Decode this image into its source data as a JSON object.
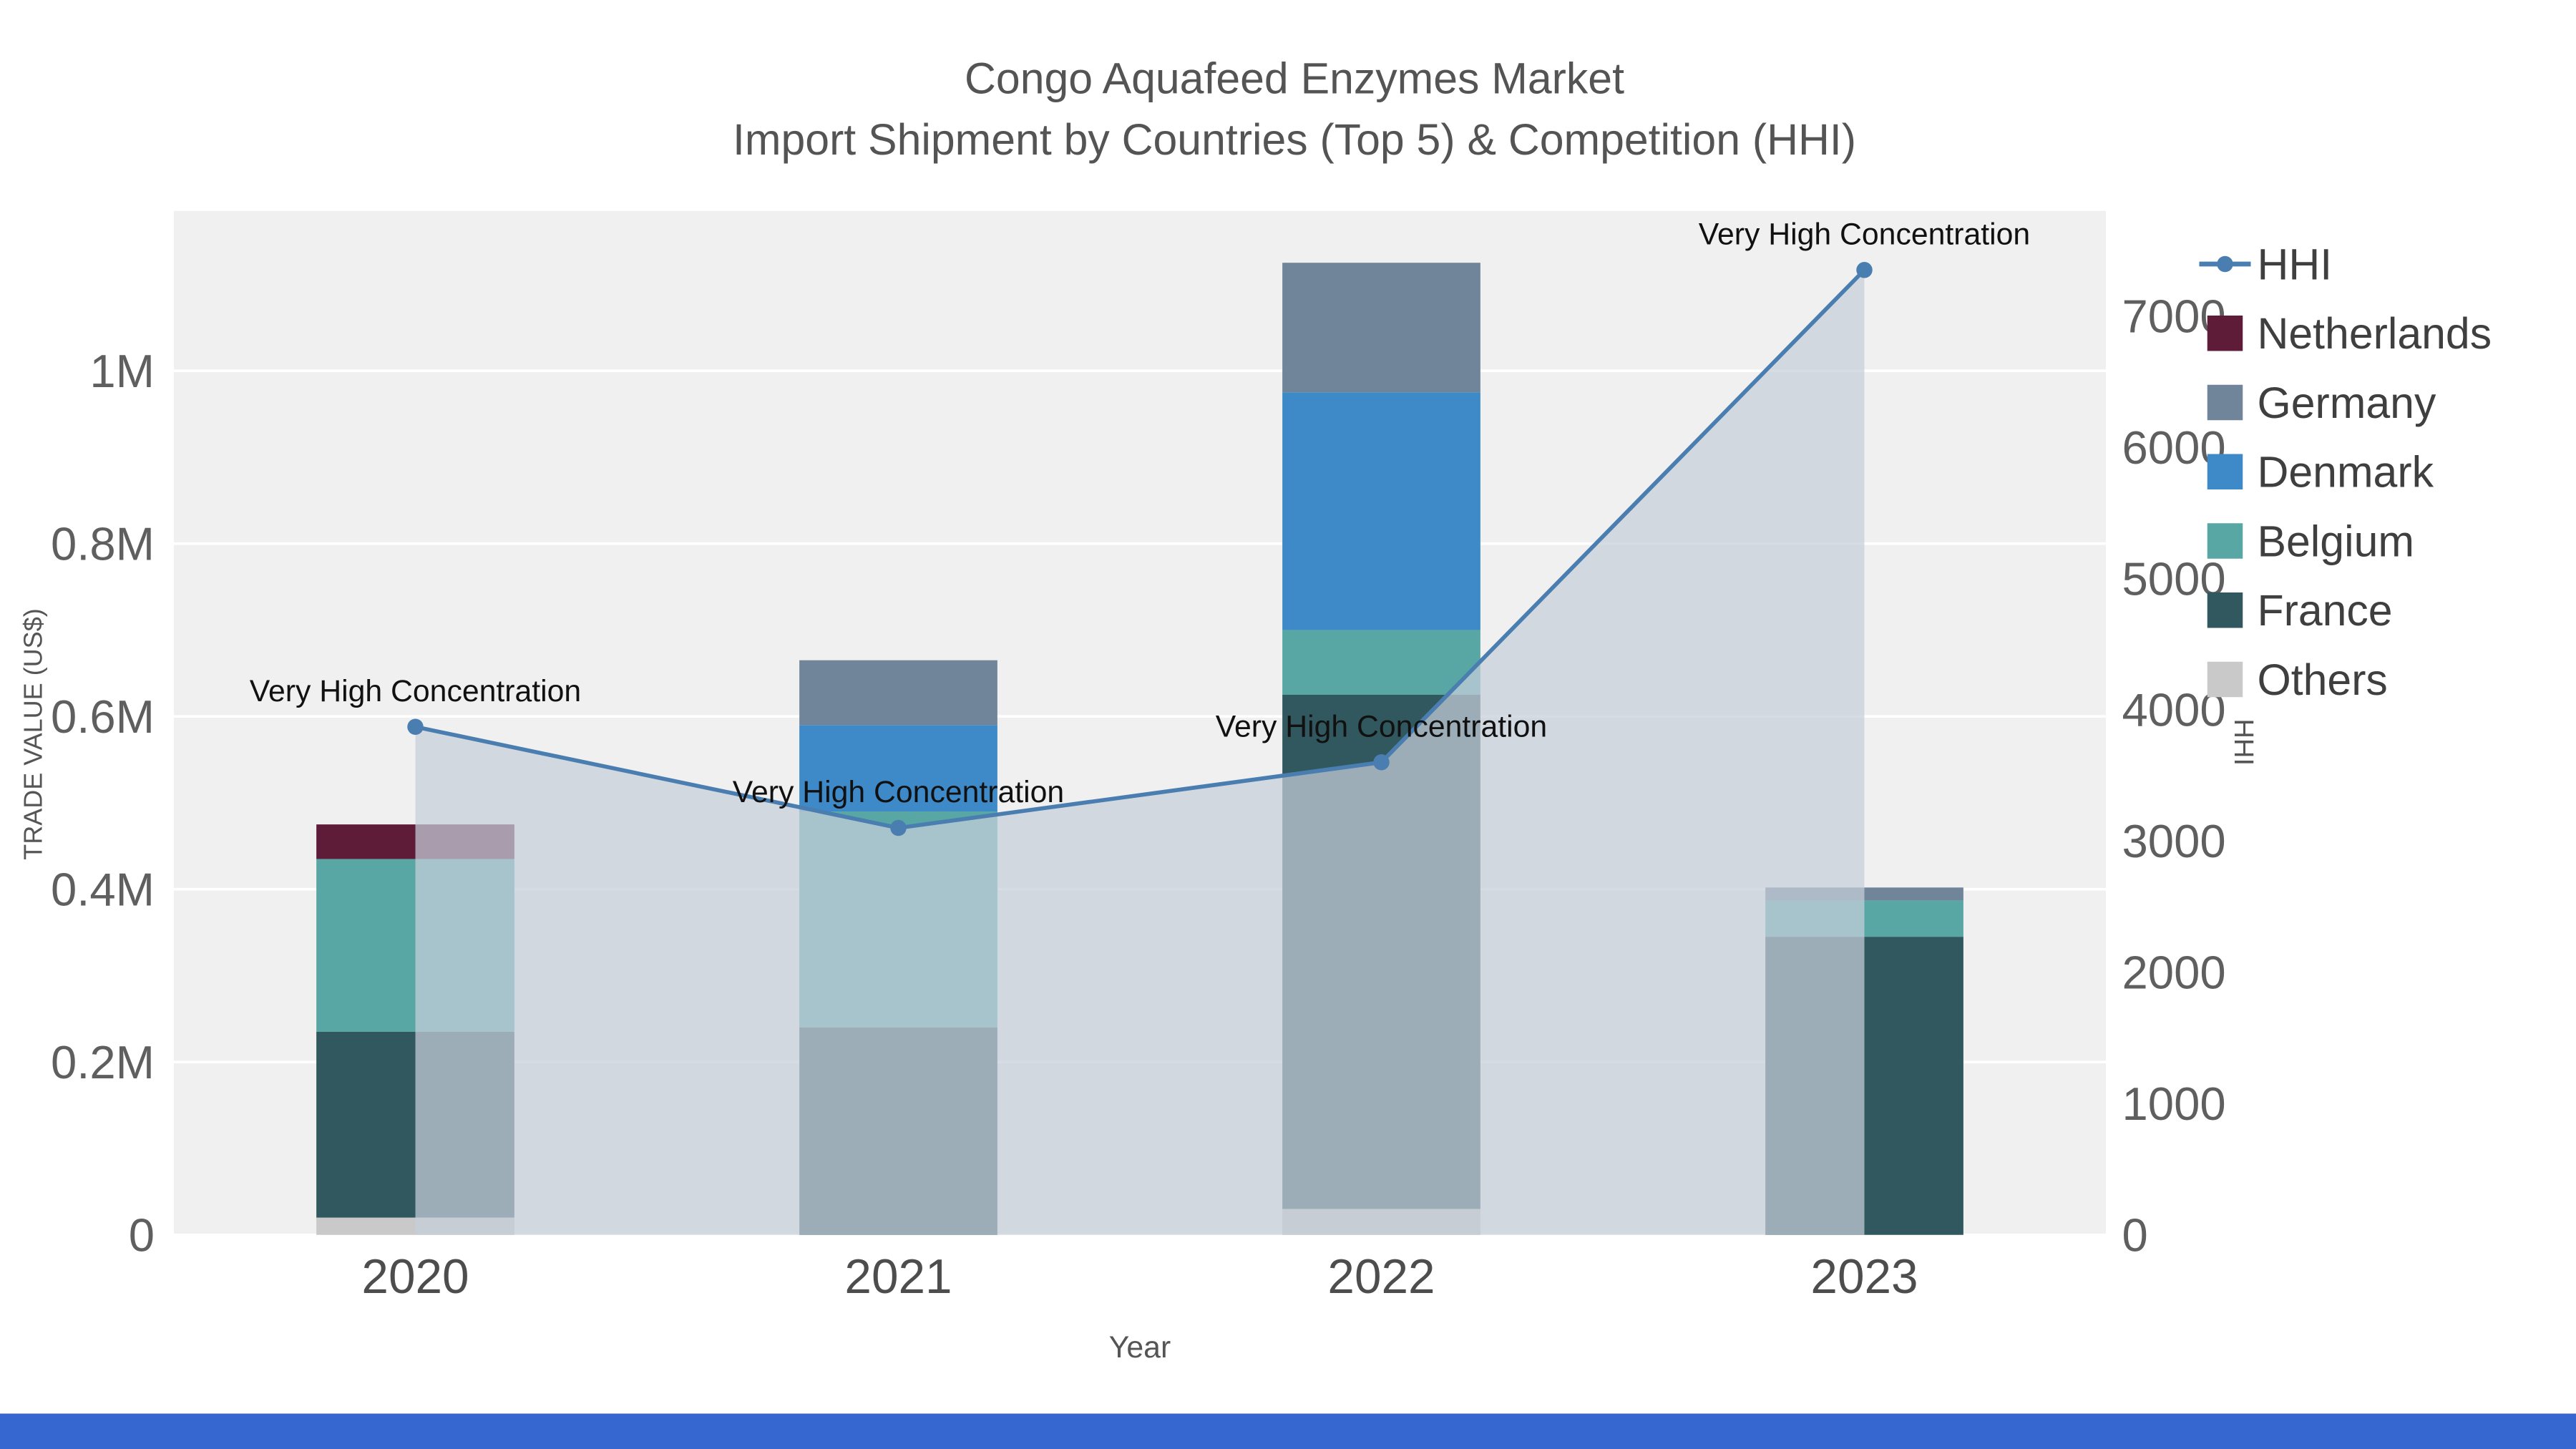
{
  "page": {
    "bottom_bar_color": "#3667d1"
  },
  "chart_data": {
    "type": "combo-stacked-bar-line-area",
    "title_line1": "Congo Aquafeed Enzymes Market",
    "title_line2": "Import Shipment by Countries (Top 5) & Competition (HHI)",
    "title_color": "#545454",
    "xlabel": "Year",
    "ylabel_left": "TRADE VALUE (US$)",
    "ylabel_right": "HHI",
    "plot_bg": "#f0f0f0",
    "grid_color": "#ffffff",
    "categories": [
      "2020",
      "2021",
      "2022",
      "2023"
    ],
    "bar_series": [
      {
        "name": "Others",
        "color": "#c9c9c9",
        "values": [
          20000,
          0,
          30000,
          0
        ]
      },
      {
        "name": "France",
        "color": "#31585e",
        "values": [
          215000,
          240000,
          595000,
          345000
        ]
      },
      {
        "name": "Belgium",
        "color": "#58a7a4",
        "values": [
          200000,
          250000,
          75000,
          42000
        ]
      },
      {
        "name": "Denmark",
        "color": "#3e8ac8",
        "values": [
          0,
          100000,
          275000,
          0
        ]
      },
      {
        "name": "Germany",
        "color": "#70859a",
        "values": [
          0,
          75000,
          150000,
          15000
        ]
      },
      {
        "name": "Netherlands",
        "color": "#5e1c38",
        "values": [
          40000,
          0,
          0,
          0
        ]
      }
    ],
    "line_series": {
      "name": "HHI",
      "color": "#4a7eb0",
      "values": [
        3870,
        3100,
        3600,
        7350
      ],
      "area_fill": "#c6cfda",
      "area_opacity": 0.72
    },
    "annotations": [
      "Very High Concentration",
      "Very High Concentration",
      "Very High Concentration",
      "Very High Concentration"
    ],
    "left_axis": {
      "ticks": [
        "0",
        "0.2M",
        "0.4M",
        "0.6M",
        "0.8M",
        "1M"
      ],
      "tick_values": [
        0,
        200000,
        400000,
        600000,
        800000,
        1000000
      ],
      "max": 1185000
    },
    "right_axis": {
      "ticks": [
        "0",
        "1000",
        "2000",
        "3000",
        "4000",
        "5000",
        "6000",
        "7000"
      ],
      "tick_values": [
        0,
        1000,
        2000,
        3000,
        4000,
        5000,
        6000,
        7000
      ],
      "max": 7800
    },
    "legend": [
      "HHI",
      "Netherlands",
      "Germany",
      "Denmark",
      "Belgium",
      "France",
      "Others"
    ],
    "text_colors": {
      "ticks": "#5f5f5f",
      "x_ticks": "#4d4d4d",
      "axis_titles": "#555555",
      "legend": "#3f3f3f",
      "annotation": "#111111"
    }
  }
}
